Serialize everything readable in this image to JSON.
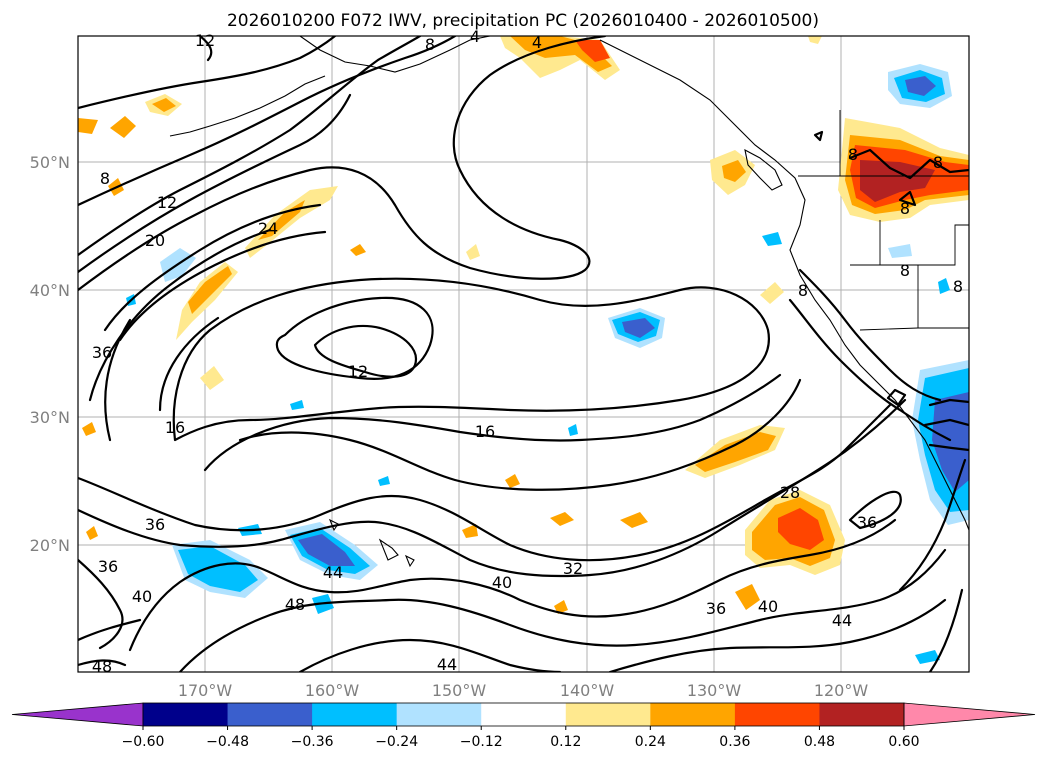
{
  "title": "2026010200 F072 IWV, precipitation PC (2026010400 - 2026010500)",
  "axes": {
    "lon_labels": [
      "170°W",
      "160°W",
      "150°W",
      "140°W",
      "130°W",
      "120°W"
    ],
    "lat_labels": [
      "50°N",
      "40°N",
      "30°N",
      "20°N"
    ]
  },
  "colorbar": {
    "ticks": [
      "−0.60",
      "−0.48",
      "−0.36",
      "−0.24",
      "−0.12",
      "0.12",
      "0.24",
      "0.36",
      "0.48",
      "0.60"
    ],
    "colors": [
      "#9933cc",
      "#00008b",
      "#3a5fcd",
      "#00bfff",
      "#b0e2ff",
      "#ffffff",
      "#ffe98f",
      "#ffa500",
      "#ff4500",
      "#b22222",
      "#ff88aa"
    ]
  },
  "contour_labels": [
    "12",
    "8",
    "4",
    "4",
    "8",
    "8",
    "8",
    "8",
    "8",
    "12",
    "20",
    "24",
    "36",
    "12",
    "16",
    "16",
    "36",
    "36",
    "40",
    "44",
    "48",
    "40",
    "32",
    "28",
    "36",
    "36",
    "40",
    "44",
    "48",
    "44",
    "8",
    "8"
  ],
  "colors": {
    "contour": "#000000",
    "grid": "#b0b0b0",
    "precip_pos_light": "#ffe98f",
    "precip_pos_mid": "#ffa500",
    "precip_pos_strong": "#ff4500",
    "precip_pos_max": "#b22222",
    "precip_neg_light": "#b0e2ff",
    "precip_neg_mid": "#00bfff",
    "precip_neg_strong": "#3a5fcd"
  }
}
